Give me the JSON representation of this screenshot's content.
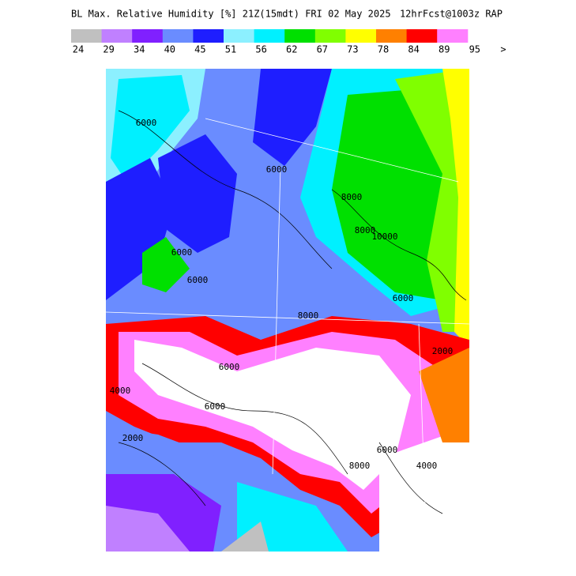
{
  "header": {
    "title": "BL Max. Relative Humidity [%] 21Z(15mdt) FRI 02 May 2025",
    "forecast": "12hrFcst@1003z RAP"
  },
  "colorbar": {
    "colors": [
      "#c0c0c0",
      "#c080ff",
      "#8020ff",
      "#6a8cff",
      "#1e1eff",
      "#8cf0ff",
      "#00f0ff",
      "#00e000",
      "#80ff00",
      "#ffff00",
      "#ff8000",
      "#ff0000",
      "#ff80ff"
    ],
    "labels": [
      "24",
      "29",
      "34",
      "40",
      "45",
      "51",
      "56",
      "62",
      "67",
      "73",
      "78",
      "84",
      "89",
      "95",
      ">"
    ]
  },
  "map": {
    "contour_labels": [
      "6000",
      "6000",
      "8000",
      "8000",
      "10000",
      "6000",
      "6000",
      "8000",
      "2000",
      "4000",
      "6000",
      "6000",
      "6000",
      "8000",
      "4000",
      "2000",
      "6000"
    ]
  }
}
